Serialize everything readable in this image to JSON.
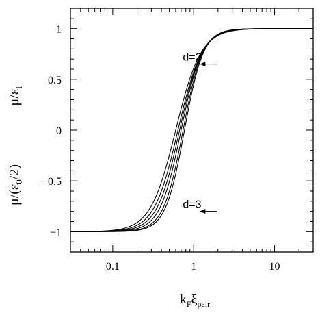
{
  "chart_data": {
    "type": "line",
    "title": "",
    "xscale": "log",
    "xlim": [
      0.03,
      30
    ],
    "ylim": [
      -1.2,
      1.2
    ],
    "grid": false,
    "xticks": [
      {
        "value": 0.1,
        "label": "0.1"
      },
      {
        "value": 1,
        "label": "1"
      },
      {
        "value": 10,
        "label": "10"
      }
    ],
    "yticks": [
      {
        "value": 1,
        "label": "1"
      },
      {
        "value": 0.5,
        "label": "0.5"
      },
      {
        "value": 0,
        "label": "0"
      },
      {
        "value": -0.5,
        "label": "−0.5"
      },
      {
        "value": -1,
        "label": "−1"
      }
    ],
    "xlabel": {
      "main": "k",
      "sub1": "F",
      "greek": "ξ",
      "sub2": "pair"
    },
    "ylabel_top": {
      "greek": "μ",
      "rest": "/ε",
      "sub": "f"
    },
    "ylabel_bottom": {
      "greek": "μ",
      "pre": "/(ε",
      "sub": "0",
      "post": "/2)"
    },
    "annotations": [
      {
        "text": "d=2",
        "x": 1.6,
        "y": 0.65
      },
      {
        "text": "d=3",
        "x": 1.6,
        "y": -0.8
      }
    ],
    "series": [
      {
        "x0": 0.6,
        "width": 0.36
      },
      {
        "x0": 0.64,
        "width": 0.34
      },
      {
        "x0": 0.67,
        "width": 0.32
      },
      {
        "x0": 0.7,
        "width": 0.3
      },
      {
        "x0": 0.74,
        "width": 0.28
      },
      {
        "x0": 0.77,
        "width": 0.27
      }
    ]
  }
}
